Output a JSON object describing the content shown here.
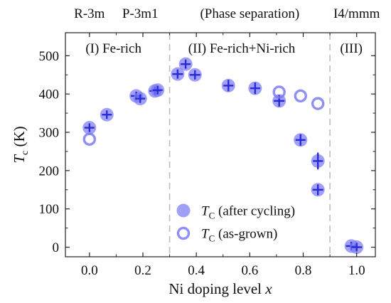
{
  "chart_data": {
    "type": "scatter",
    "xlabel": "Ni doping level x",
    "ylabel": "Tc (K)",
    "xlim": [
      -0.09,
      1.07
    ],
    "ylim": [
      -25,
      560
    ],
    "xticks": [
      "0.0",
      "0.2",
      "0.4",
      "0.6",
      "0.8",
      "1.0"
    ],
    "xtick_values": [
      0.0,
      0.2,
      0.4,
      0.6,
      0.8,
      1.0
    ],
    "yticks": [
      "0",
      "100",
      "200",
      "300",
      "400",
      "500"
    ],
    "ytick_values": [
      0,
      100,
      200,
      300,
      400,
      500
    ],
    "grid": false,
    "boundaries": [
      0.3,
      0.9
    ],
    "top_labels": [
      {
        "text": "R-3m",
        "x": 0.0
      },
      {
        "text": "P-3m1",
        "x": 0.19
      },
      {
        "text": "(Phase separation)",
        "x": 0.6
      },
      {
        "text": "I4/mmm",
        "x": 1.0
      }
    ],
    "region_labels": [
      {
        "text": "(I) Fe-rich",
        "x": 0.09
      },
      {
        "text": "(II) Fe-rich+Ni-rich",
        "x": 0.57
      },
      {
        "text": "(III)",
        "x": 0.98
      }
    ],
    "legend_position": "lower-center",
    "series": [
      {
        "name": "TC (after cycling)",
        "name_main": "T",
        "name_sub": "C",
        "name_rest": " (after cycling)",
        "marker": "filled",
        "color": "#7b7bf2",
        "points": [
          {
            "x": 0.0,
            "y": 312,
            "xerr": 0.01,
            "yerr": 10
          },
          {
            "x": 0.065,
            "y": 346,
            "xerr": 0.015,
            "yerr": 10
          },
          {
            "x": 0.175,
            "y": 395,
            "xerr": 0.02,
            "yerr": 10
          },
          {
            "x": 0.19,
            "y": 388,
            "xerr": 0.015,
            "yerr": 10
          },
          {
            "x": 0.245,
            "y": 408,
            "xerr": 0.02,
            "yerr": 10
          },
          {
            "x": 0.255,
            "y": 410,
            "xerr": 0.015,
            "yerr": 10
          },
          {
            "x": 0.33,
            "y": 452,
            "xerr": 0.02,
            "yerr": 12
          },
          {
            "x": 0.36,
            "y": 478,
            "xerr": 0.015,
            "yerr": 12
          },
          {
            "x": 0.395,
            "y": 450,
            "xerr": 0.02,
            "yerr": 12
          },
          {
            "x": 0.52,
            "y": 422,
            "xerr": 0.015,
            "yerr": 15
          },
          {
            "x": 0.62,
            "y": 415,
            "xerr": 0.015,
            "yerr": 15
          },
          {
            "x": 0.71,
            "y": 382,
            "xerr": 0.02,
            "yerr": 15
          },
          {
            "x": 0.79,
            "y": 280,
            "xerr": 0.015,
            "yerr": 15
          },
          {
            "x": 0.855,
            "y": 225,
            "xerr": 0.015,
            "yerr": 22
          },
          {
            "x": 0.855,
            "y": 150,
            "xerr": 0.02,
            "yerr": 14
          },
          {
            "x": 0.98,
            "y": 3,
            "xerr": 0.02,
            "yerr": 6
          },
          {
            "x": 1.0,
            "y": 0,
            "xerr": 0.02,
            "yerr": 6
          }
        ]
      },
      {
        "name": "TC (as-grown)",
        "name_main": "T",
        "name_sub": "C",
        "name_rest": " (as-grown)",
        "marker": "open",
        "color": "#7b7bf2",
        "points": [
          {
            "x": 0.0,
            "y": 282
          },
          {
            "x": 0.71,
            "y": 405
          },
          {
            "x": 0.79,
            "y": 395
          },
          {
            "x": 0.855,
            "y": 375
          }
        ]
      }
    ]
  }
}
